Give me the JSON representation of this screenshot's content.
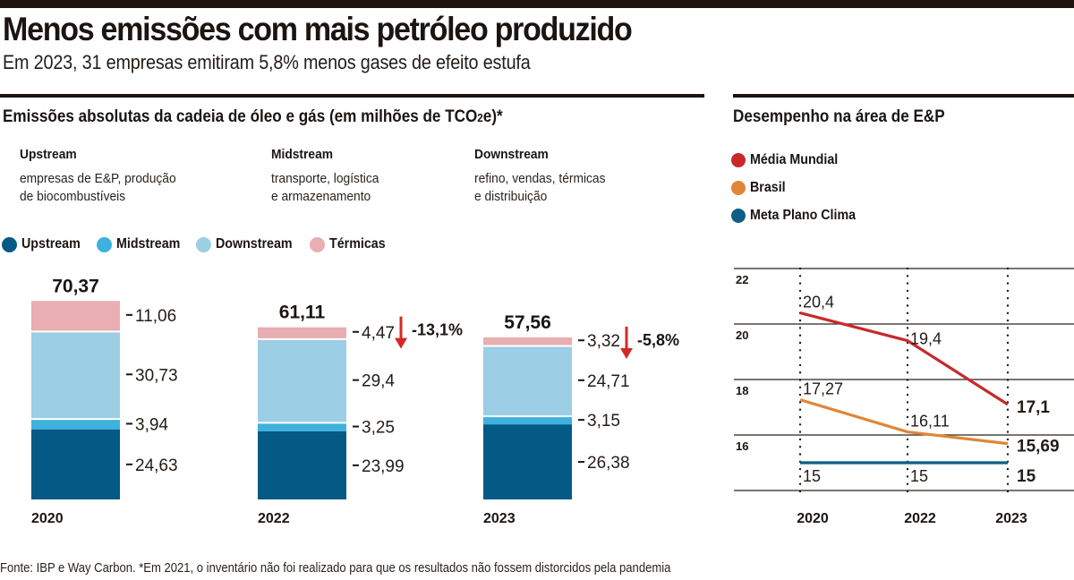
{
  "header": {
    "title": "Menos emissões com mais petróleo produzido",
    "subtitle": "Em 2023, 31 empresas emitiram 5,8% menos gases de efeito estufa"
  },
  "left_panel": {
    "title_main": "Emissões absolutas da cadeia de óleo e gás (em milhões de TCO",
    "title_sub": "2",
    "title_end": "e)*",
    "categories": [
      {
        "name": "Upstream",
        "description": "empresas de E&P, produção\nde biocombustíveis"
      },
      {
        "name": "Midstream",
        "description": "transporte, logística\ne armazenamento"
      },
      {
        "name": "Downstream",
        "description": "refino, vendas, térmicas\ne distribuição"
      }
    ]
  },
  "right_panel": {
    "title": "Desempenho na área de E&P"
  },
  "footer": {
    "source": "Fonte: IBP e Way Carbon. *Em 2021, o inventário não foi realizado para que os resultados não fossem distorcidos pela pandemia"
  },
  "chart_data": [
    {
      "type": "bar",
      "stacked": true,
      "title": "Emissões absolutas da cadeia de óleo e gás (em milhões de TCO2e)*",
      "categories": [
        "2020",
        "2022",
        "2023"
      ],
      "series": [
        {
          "name": "Upstream",
          "color": "#045a84",
          "values": [
            24.63,
            23.99,
            26.38
          ],
          "labels": [
            "24,63",
            "23,99",
            "26,38"
          ]
        },
        {
          "name": "Midstream",
          "color": "#3eb1df",
          "values": [
            3.94,
            3.25,
            3.15
          ],
          "labels": [
            "3,94",
            "3,25",
            "3,15"
          ]
        },
        {
          "name": "Downstream",
          "color": "#9ccee5",
          "values": [
            30.73,
            29.4,
            24.71
          ],
          "labels": [
            "30,73",
            "29,4",
            "24,71"
          ]
        },
        {
          "name": "Térmicas",
          "color": "#e8aeb1",
          "values": [
            11.06,
            4.47,
            3.32
          ],
          "labels": [
            "11,06",
            "4,47",
            "3,32"
          ]
        }
      ],
      "totals": [
        70.37,
        61.11,
        57.56
      ],
      "total_labels": [
        "70,37",
        "61,11",
        "57,56"
      ],
      "changes": [
        null,
        "-13,1%",
        "-5,8%"
      ],
      "change_color": "#d42a27",
      "legend": "top-left",
      "grid": false
    },
    {
      "type": "line",
      "title": "Desempenho na área de E&P",
      "x": [
        "2020",
        "2022",
        "2023"
      ],
      "series": [
        {
          "name": "Média Mundial",
          "color": "#c8292a",
          "values": [
            20.4,
            19.4,
            17.1
          ],
          "labels": [
            "20,4",
            "19,4",
            "17,1"
          ]
        },
        {
          "name": "Brasil",
          "color": "#e18536",
          "values": [
            17.27,
            16.11,
            15.69
          ],
          "labels": [
            "17,27",
            "16,11",
            "15,69"
          ]
        },
        {
          "name": "Meta Plano Clima",
          "color": "#0f5e86",
          "values": [
            15,
            15,
            15
          ],
          "labels": [
            "15",
            "15",
            "15"
          ]
        }
      ],
      "yticks": [
        22,
        20,
        18,
        16
      ],
      "ylim": [
        14,
        22
      ],
      "grid": true,
      "legend": "top-left"
    }
  ]
}
